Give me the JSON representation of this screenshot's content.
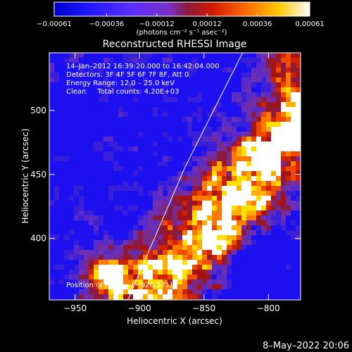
{
  "chart_data": {
    "type": "heatmap",
    "title": "Reconstructed RHESSI Image",
    "xlabel": "Heliocentric X (arcsec)",
    "ylabel": "Heliocentric Y (arcsec)",
    "xlim": [
      -970,
      -775
    ],
    "ylim": [
      352,
      545
    ],
    "xticks": [
      -950,
      -900,
      -850,
      -800
    ],
    "yticks": [
      400,
      450,
      500
    ],
    "xtick_labels": [
      "−950",
      "−900",
      "−850",
      "−800"
    ],
    "ytick_labels": [
      "400",
      "450",
      "500"
    ],
    "colorbar": {
      "range": [
        -0.00061,
        0.00061
      ],
      "ticks": [
        -0.00061,
        -0.00036,
        -0.00012,
        0.00012,
        0.00036,
        0.00061
      ],
      "tick_labels": [
        "−0.00061",
        "−0.00036",
        "−0.00012",
        "0.00012",
        "0.00036",
        "0.00061"
      ],
      "unit_label": "(photons cm⁻² s⁻¹ asec⁻²)"
    },
    "annotations": [
      "14–Jan–2012 16:39:20.000 to 16:42:04.000",
      "Detectors: 3F 4F 5F 6F 7F 8F, Att 0",
      "Energy Range: 12.0 – 25.0 keV",
      "Clean     Total counts: 4.20E+03"
    ],
    "peak_label": "Position of Peak = [−926,371]",
    "peak_position": [
      -926,
      371
    ],
    "limb_line": [
      [
        -909,
        352
      ],
      [
        -865,
        455
      ],
      [
        -820,
        545
      ]
    ],
    "grid": false,
    "colors": {
      "colormap": [
        "#000000",
        "#1b14ff",
        "#5a2dff",
        "#8b4bd6",
        "#b31d60",
        "#e41d00",
        "#ff7a00",
        "#ffd300",
        "#ffffff"
      ],
      "background": "#000000",
      "text": "#ffffff"
    }
  },
  "footer_timestamp": "8–May–2022 20:06"
}
